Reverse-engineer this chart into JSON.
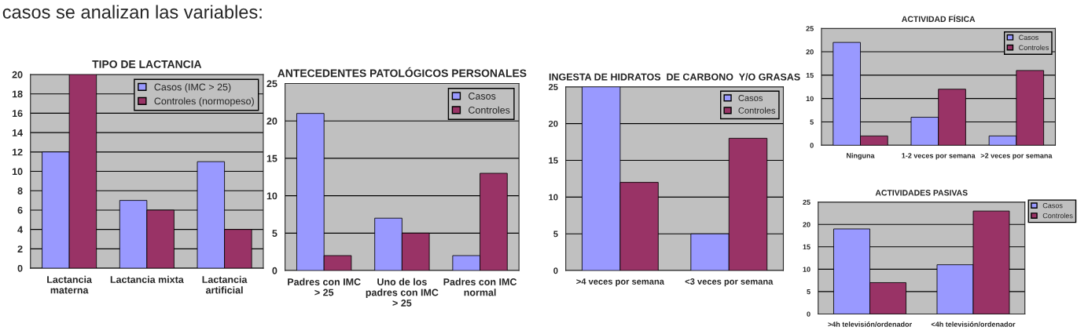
{
  "chart_data": [
    {
      "type": "bar",
      "title": "TIPO DE LACTANCIA",
      "annotations": [
        "casos se analizan las variables:"
      ],
      "categories": [
        "Lactancia materna",
        "Lactancia mixta",
        "Lactancia artificial"
      ],
      "series": [
        {
          "name": "Casos (IMC > 25)",
          "color": "#9999ff",
          "values": [
            12,
            7,
            11
          ]
        },
        {
          "name": "Controles (normopeso)",
          "color": "#993366",
          "values": [
            20,
            6,
            4
          ]
        }
      ],
      "ylim": [
        0,
        20
      ],
      "yticks": [
        0,
        2,
        4,
        6,
        8,
        10,
        12,
        14,
        16,
        18,
        20
      ],
      "grid": "y",
      "legend": "top right"
    },
    {
      "type": "bar",
      "title": "ANTECEDENTES PATOLÓGICOS PERSONALES",
      "categories": [
        "Padres con IMC > 25",
        "Uno de los padres con IMC > 25",
        "Padres con IMC normal"
      ],
      "series": [
        {
          "name": "Casos",
          "color": "#9999ff",
          "values": [
            21,
            7,
            2
          ]
        },
        {
          "name": "Controles",
          "color": "#993366",
          "values": [
            2,
            5,
            13
          ]
        }
      ],
      "ylim": [
        0,
        25
      ],
      "yticks": [
        0,
        5,
        10,
        15,
        20,
        25
      ],
      "grid": "y",
      "legend": "top right"
    },
    {
      "type": "bar",
      "title": "INGESTA DE HIDRATOS  DE CARBONO  Y/O GRASAS",
      "categories": [
        ">4 veces por semana",
        "<3 veces por semana"
      ],
      "series": [
        {
          "name": "Casos",
          "color": "#9999ff",
          "values": [
            25,
            5
          ]
        },
        {
          "name": "Controles",
          "color": "#993366",
          "values": [
            12,
            18
          ]
        }
      ],
      "ylim": [
        0,
        25
      ],
      "yticks": [
        0,
        5,
        10,
        15,
        20,
        25
      ],
      "grid": "y",
      "legend": "top right"
    },
    {
      "type": "bar",
      "title": "ACTIVIDAD FÍSICA",
      "categories": [
        "Ninguna",
        "1-2 veces por semana",
        ">2 veces por semana"
      ],
      "series": [
        {
          "name": "Casos",
          "color": "#9999ff",
          "values": [
            22,
            6,
            2
          ]
        },
        {
          "name": "Controles",
          "color": "#993366",
          "values": [
            2,
            12,
            16
          ]
        }
      ],
      "ylim": [
        0,
        25
      ],
      "yticks": [
        0,
        5,
        10,
        15,
        20,
        25
      ],
      "grid": "y",
      "legend": "top right"
    },
    {
      "type": "bar",
      "title": "ACTIVIDADES PASIVAS",
      "categories": [
        ">4h televisión/ordenador",
        "<4h televisión/ordenador"
      ],
      "series": [
        {
          "name": "Casos",
          "color": "#9999ff",
          "values": [
            19,
            11
          ]
        },
        {
          "name": "Controles",
          "color": "#993366",
          "values": [
            7,
            23
          ]
        }
      ],
      "ylim": [
        0,
        25
      ],
      "yticks": [
        0,
        5,
        10,
        15,
        20,
        25
      ],
      "grid": "y",
      "legend": "top right"
    }
  ]
}
